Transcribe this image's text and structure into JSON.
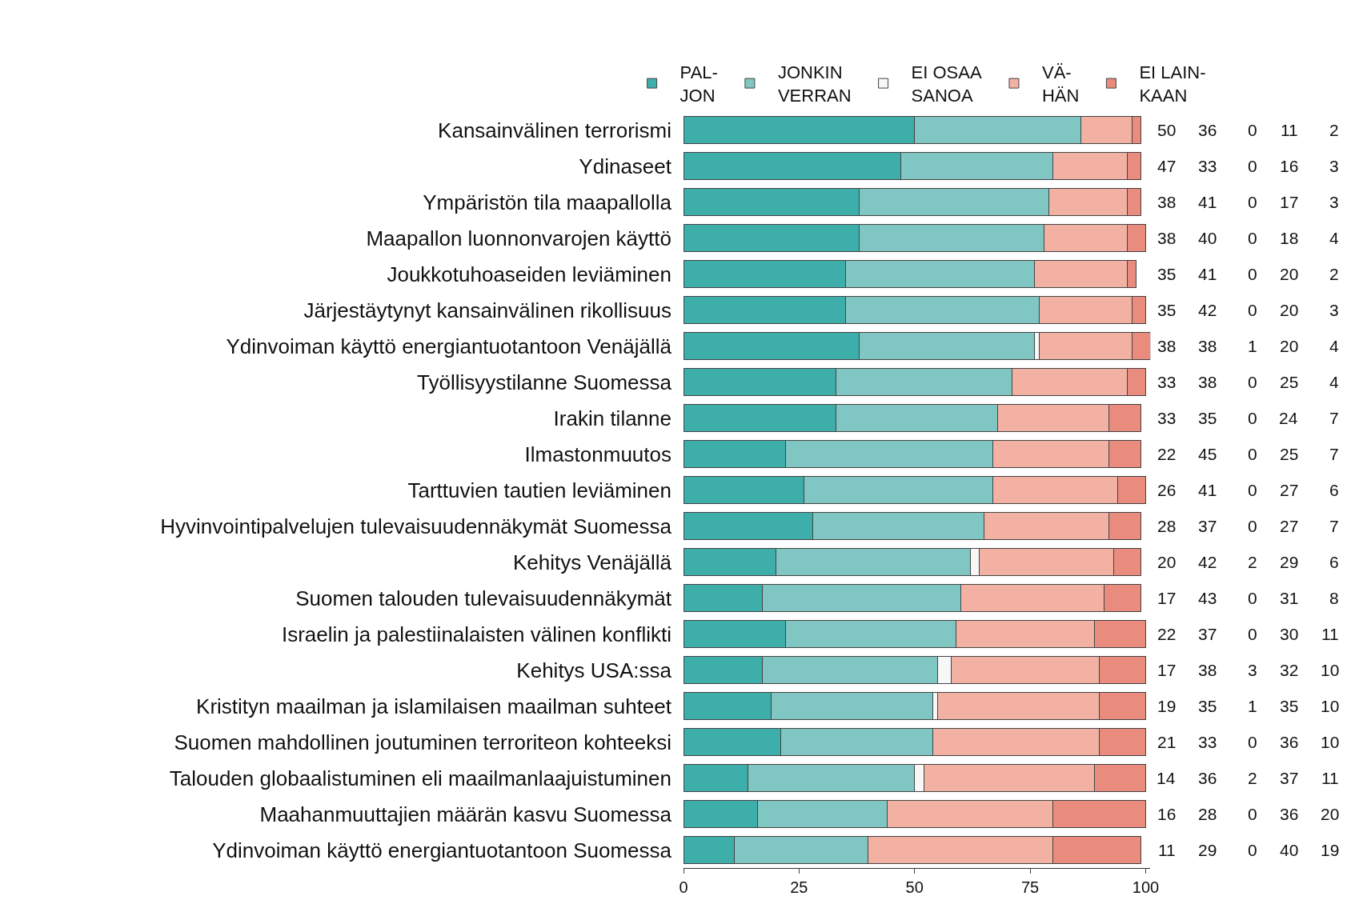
{
  "chart_data": {
    "type": "bar",
    "orientation": "horizontal",
    "stacked": true,
    "data_labels": true,
    "legend": "top",
    "xlim": [
      0,
      101
    ],
    "xticks": [
      0,
      25,
      50,
      75,
      100
    ],
    "categories": [
      "Kansainvälinen terrorismi",
      "Ydinaseet",
      "Ympäristön tila maapallolla",
      "Maapallon luonnonvarojen käyttö",
      "Joukkotuhoaseiden leviäminen",
      "Järjestäytynyt kansainvälinen rikollisuus",
      "Ydinvoiman käyttö energiantuotantoon Venäjällä",
      "Työllisyystilanne Suomessa",
      "Irakin tilanne",
      "Ilmastonmuutos",
      "Tarttuvien tautien leviäminen",
      "Hyvinvointipalvelujen tulevaisuudennäkymät Suomessa",
      "Kehitys Venäjällä",
      "Suomen talouden tulevaisuudennäkymät",
      "Israelin ja palestiinalaisten välinen konflikti",
      "Kehitys USA:ssa",
      "Kristityn maailman ja islamilaisen maailman suhteet",
      "Suomen mahdollinen joutuminen terroriteon kohteeksi",
      "Talouden globaalistuminen eli maailmanlaajuistuminen",
      "Maahanmuuttajien määrän kasvu Suomessa",
      "Ydinvoiman käyttö energiantuotantoon Suomessa"
    ],
    "series": [
      {
        "name": "PAL-\nJON",
        "color": "#3daeaa",
        "values": [
          50,
          47,
          38,
          38,
          35,
          35,
          38,
          33,
          33,
          22,
          26,
          28,
          20,
          17,
          22,
          17,
          19,
          21,
          14,
          16,
          11
        ]
      },
      {
        "name": "JONKIN\nVERRAN",
        "color": "#80c7c3",
        "values": [
          36,
          33,
          41,
          40,
          41,
          42,
          38,
          38,
          35,
          45,
          41,
          37,
          42,
          43,
          37,
          38,
          35,
          33,
          36,
          28,
          29
        ]
      },
      {
        "name": "EI OSAA\nSANOA",
        "color": "#f7f7f7",
        "values": [
          0,
          0,
          0,
          0,
          0,
          0,
          1,
          0,
          0,
          0,
          0,
          0,
          2,
          0,
          0,
          3,
          1,
          0,
          2,
          0,
          0
        ]
      },
      {
        "name": "VÄ-\nHÄN",
        "color": "#f2b1a2",
        "values": [
          11,
          16,
          17,
          18,
          20,
          20,
          20,
          25,
          24,
          25,
          27,
          27,
          29,
          31,
          30,
          32,
          35,
          36,
          37,
          36,
          40
        ]
      },
      {
        "name": "EI LAIN-\nKAAN",
        "color": "#e98b7d",
        "values": [
          2,
          3,
          3,
          4,
          2,
          3,
          4,
          4,
          7,
          7,
          6,
          7,
          6,
          8,
          11,
          10,
          10,
          10,
          11,
          20,
          19
        ]
      }
    ]
  }
}
